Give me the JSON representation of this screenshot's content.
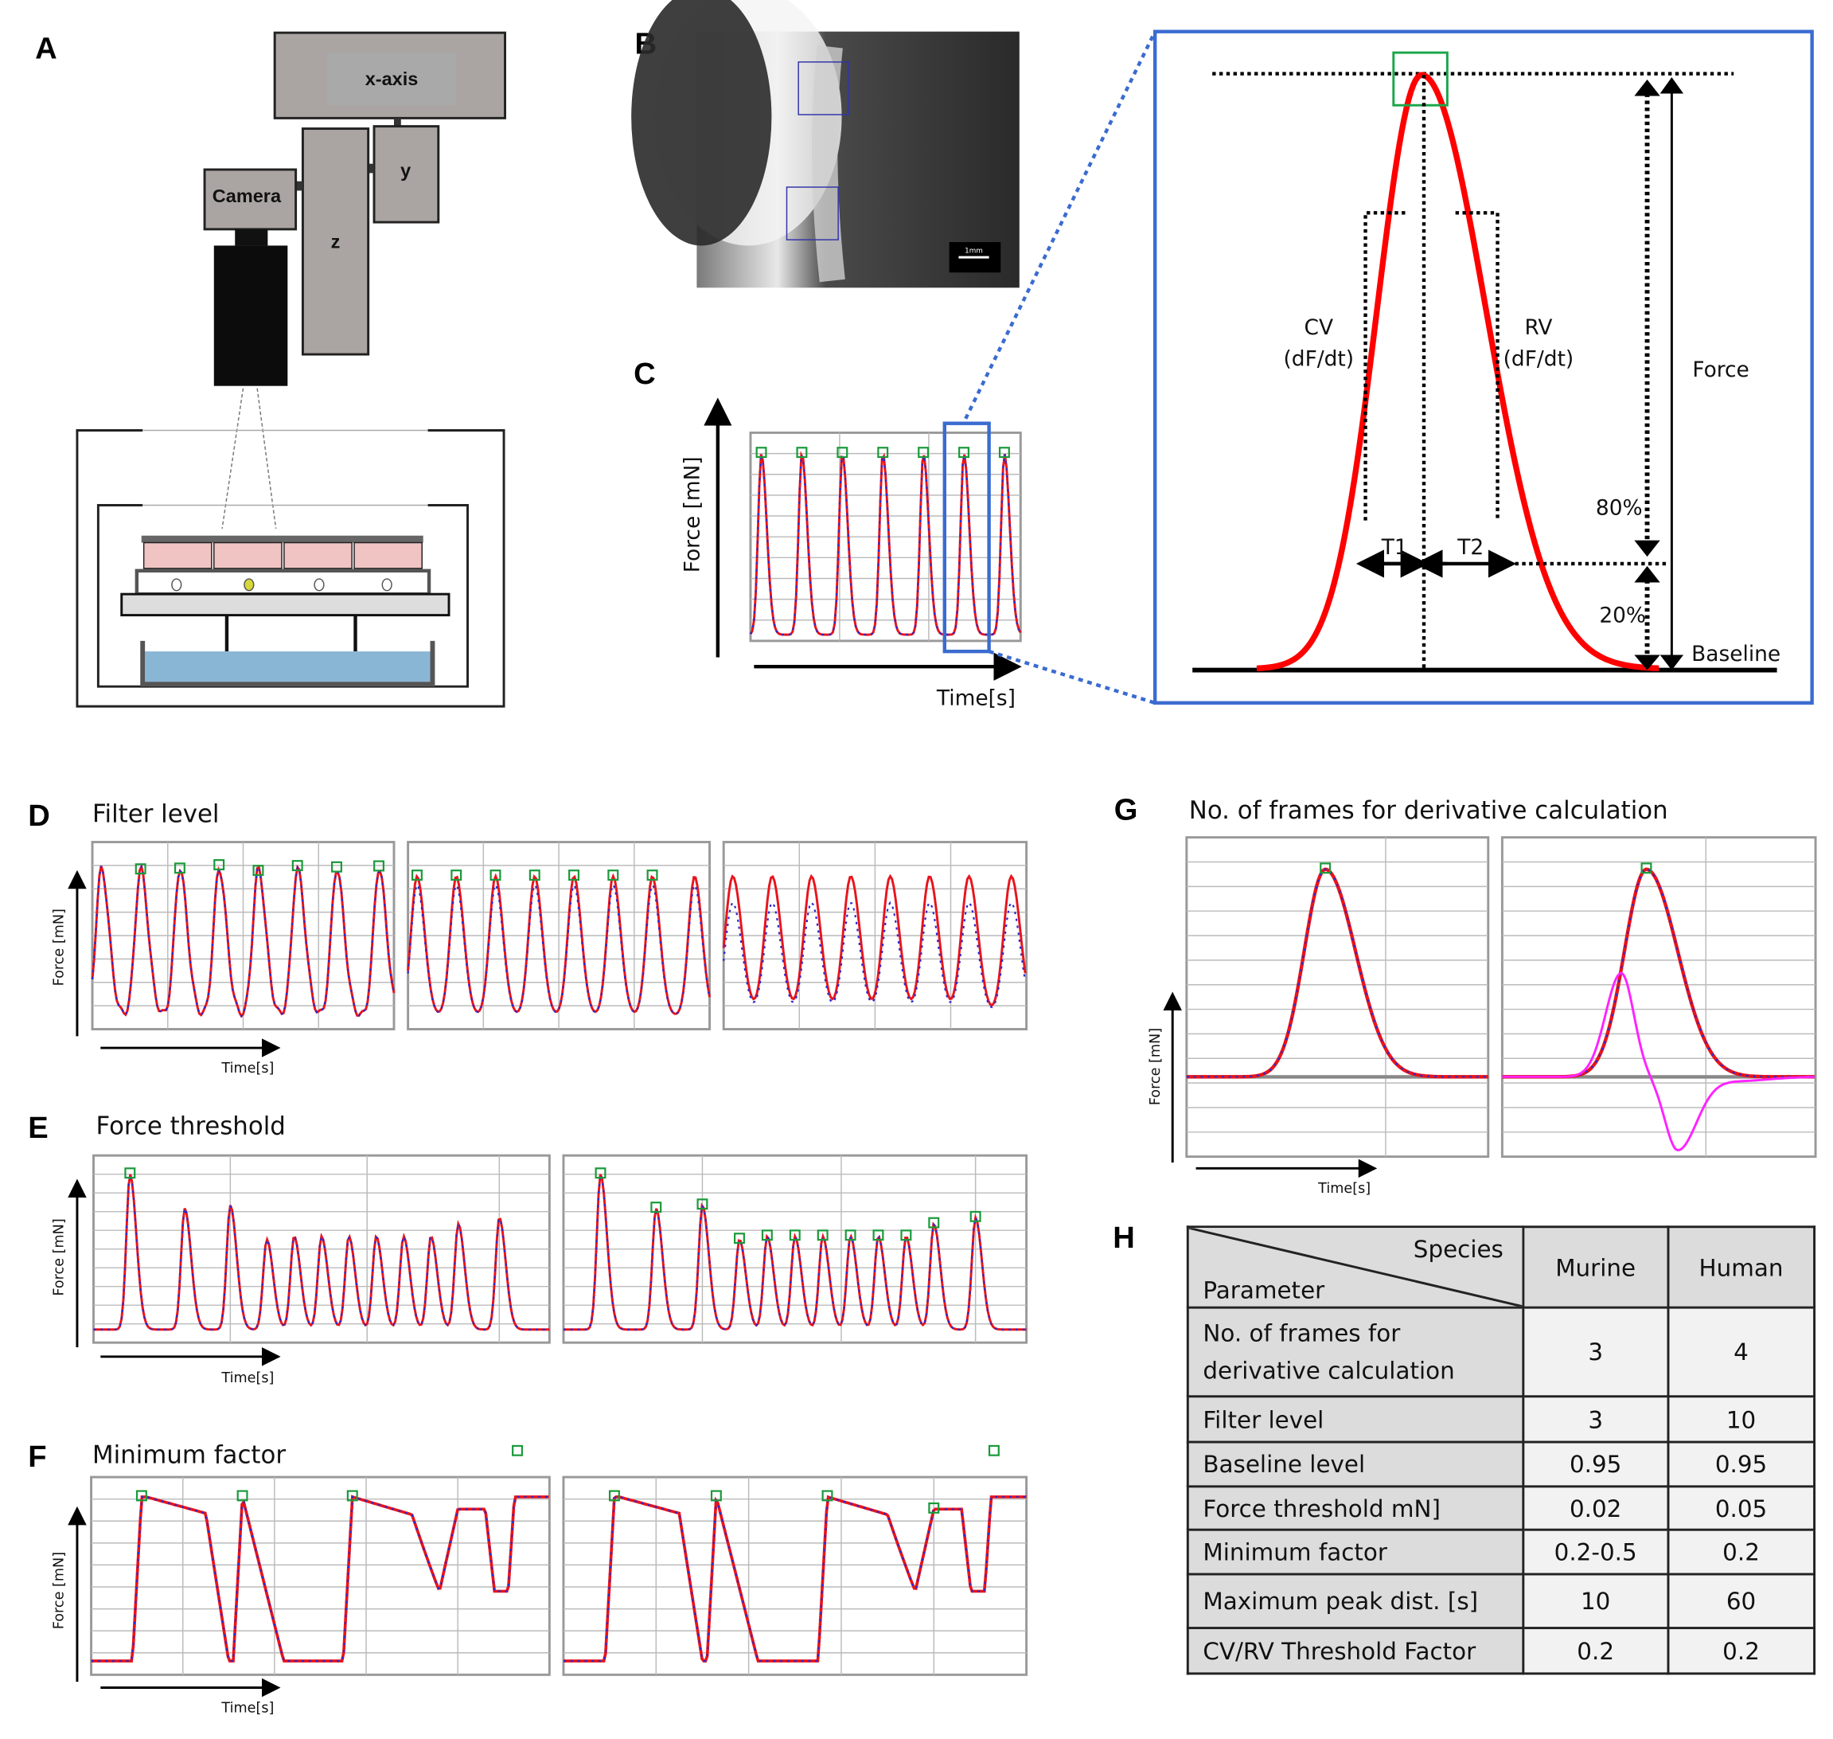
{
  "panel_labels": {
    "a": "A",
    "b": "B",
    "c": "C",
    "d": "D",
    "e": "E",
    "f": "F",
    "g": "G",
    "h": "H"
  },
  "setup": {
    "x_axis": "x-axis",
    "y": "y",
    "z": "z",
    "camera": "Camera"
  },
  "image_b": {
    "scale_bar": "1mm"
  },
  "panel_c": {
    "ylabel": "Force [mN]",
    "xlabel": "Time[s]"
  },
  "zoom_panel": {
    "cv": "CV",
    "cv_unit": "(dF/dt)",
    "rv": "RV",
    "rv_unit": "(dF/dt)",
    "force": "Force",
    "t1": "T1",
    "t2": "T2",
    "p80": "80%",
    "p20": "20%",
    "baseline": "Baseline"
  },
  "panel_d": {
    "title": "Filter level",
    "ylabel": "Force [mN]",
    "xlabel": "Time[s]"
  },
  "panel_e": {
    "title": "Force threshold",
    "ylabel": "Force [mN]",
    "xlabel": "Time[s]"
  },
  "panel_f": {
    "title": "Minimum factor",
    "ylabel": "Force [mN]",
    "xlabel": "Time[s]"
  },
  "panel_g": {
    "title": "No. of frames for derivative calculation",
    "ylabel": "Force [mN]",
    "xlabel": "Time[s]"
  },
  "table": {
    "corner_top": "Species",
    "corner_bottom": "Parameter",
    "columns": [
      "Murine",
      "Human"
    ],
    "rows": [
      {
        "param": "No. of frames for derivative calculation",
        "murine": "3",
        "human": "4"
      },
      {
        "param": "Filter level",
        "murine": "3",
        "human": "10"
      },
      {
        "param": "Baseline level",
        "murine": "0.95",
        "human": "0.95"
      },
      {
        "param": "Force threshold mN]",
        "murine": "0.02",
        "human": "0.05"
      },
      {
        "param": "Minimum factor",
        "murine": "0.2-0.5",
        "human": "0.2"
      },
      {
        "param": "Maximum peak dist. [s]",
        "murine": "10",
        "human": "60"
      },
      {
        "param": "CV/RV Threshold Factor",
        "murine": "0.2",
        "human": "0.2"
      }
    ]
  },
  "colors": {
    "trace": "#e8141c",
    "overlay": "#2a2ad0",
    "peak_marker": "#1a9a3a",
    "highlight": "#3a6bd0",
    "derivative": "#ff22ff"
  }
}
